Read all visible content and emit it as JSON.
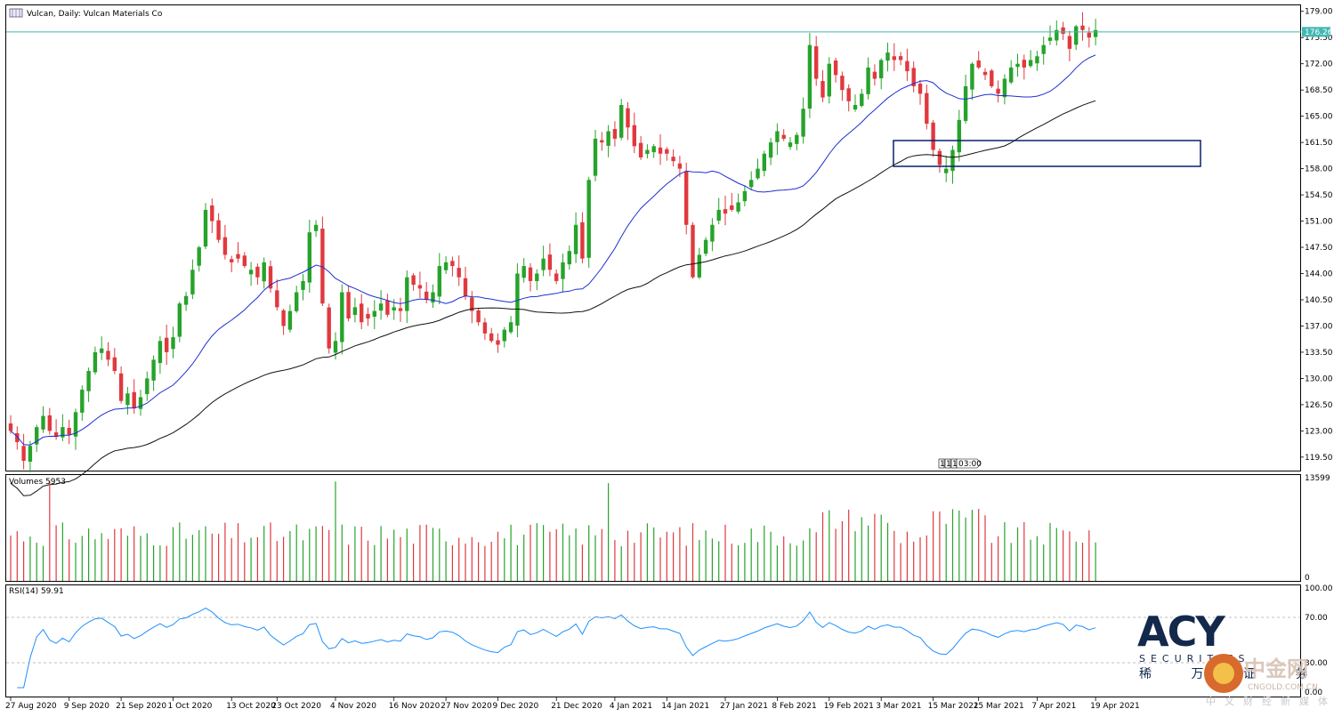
{
  "chart_data": {
    "type": "candlestick",
    "title": "Vulcan, Daily:  Vulcan Materials Co",
    "price_axis_ticks": [
      "179.00",
      "175.50",
      "172.00",
      "168.50",
      "165.00",
      "161.50",
      "158.00",
      "154.50",
      "151.00",
      "147.50",
      "144.00",
      "140.50",
      "137.00",
      "133.50",
      "130.00",
      "126.50",
      "123.00",
      "119.50"
    ],
    "ylim": [
      117.7,
      179.8
    ],
    "current_price": "176.26",
    "date_labels": [
      "27 Aug 2020",
      "9 Sep 2020",
      "21 Sep 2020",
      "1 Oct 2020",
      "13 Oct 2020",
      "23 Oct 2020",
      "4 Nov 2020",
      "16 Nov 2020",
      "27 Nov 2020",
      "9 Dec 2020",
      "21 Dec 2020",
      "4 Jan 2021",
      "14 Jan 2021",
      "27 Jan 2021",
      "8 Feb 2021",
      "19 Feb 2021",
      "3 Mar 2021",
      "15 Mar 2021",
      "25 Mar 2021",
      "7 Apr 2021",
      "19 Apr 2021"
    ],
    "date_label_index": [
      0,
      9,
      17,
      25,
      34,
      41,
      50,
      59,
      67,
      75,
      84,
      93,
      101,
      110,
      118,
      126,
      134,
      142,
      149,
      158,
      167
    ],
    "marker_text": "03:00",
    "marker_boxes": [
      "1",
      "1",
      "1"
    ],
    "close": [
      123.0,
      121.5,
      119.0,
      121.0,
      123.5,
      125.0,
      123.0,
      122.2,
      123.5,
      122.5,
      125.5,
      128.5,
      131.0,
      133.5,
      134.0,
      132.5,
      131.0,
      127.0,
      128.0,
      126.0,
      127.5,
      130.0,
      132.5,
      135.0,
      133.5,
      135.5,
      140.0,
      141.0,
      144.5,
      147.5,
      152.5,
      151.0,
      148.5,
      146.5,
      145.5,
      146.0,
      145.0,
      144.5,
      143.5,
      145.5,
      142.0,
      139.5,
      137.0,
      139.0,
      141.5,
      143.0,
      149.5,
      150.5,
      140.0,
      134.0,
      135.0,
      141.5,
      138.0,
      139.5,
      137.5,
      138.0,
      139.0,
      140.0,
      138.5,
      139.5,
      139.0,
      143.5,
      142.5,
      142.0,
      140.5,
      141.5,
      145.0,
      145.5,
      145.0,
      143.5,
      141.0,
      139.0,
      137.5,
      136.0,
      135.0,
      134.5,
      136.5,
      137.5,
      144.0,
      145.0,
      143.0,
      144.0,
      146.0,
      144.5,
      143.0,
      145.5,
      147.0,
      150.5,
      146.0,
      156.5,
      162.0,
      161.5,
      163.0,
      162.0,
      166.5,
      163.5,
      161.0,
      159.5,
      160.5,
      161.0,
      160.0,
      160.0,
      159.0,
      158.0,
      150.5,
      143.5,
      146.5,
      148.5,
      150.5,
      152.5,
      152.0,
      152.5,
      153.5,
      155.0,
      156.5,
      158.0,
      160.0,
      161.5,
      163.0,
      162.0,
      161.5,
      162.5,
      166.0,
      174.5,
      170.0,
      167.5,
      172.0,
      170.5,
      168.5,
      167.0,
      166.5,
      168.0,
      171.5,
      170.0,
      172.5,
      173.5,
      172.5,
      172.5,
      171.0,
      169.0,
      168.0,
      164.0,
      160.5,
      158.5,
      158.0,
      160.5,
      164.5,
      169.0,
      172.0,
      171.5,
      170.5,
      169.0,
      168.0,
      170.0,
      171.5,
      172.0,
      171.5,
      172.5,
      173.0,
      174.5,
      175.5,
      176.5,
      176.0,
      174.0,
      177.0,
      176.5,
      175.5,
      176.5
    ]
  },
  "panels": {
    "volume": {
      "label": "Volumes 5953",
      "max_tick": "13599",
      "min_tick": "0",
      "vmax": 13599
    },
    "rsi": {
      "label": "RSI(14) 59.91",
      "ticks": [
        "100.00",
        "70.00",
        "30.00",
        "0.00"
      ]
    }
  },
  "colors": {
    "up": "#26a32a",
    "down": "#e0393e",
    "ma_short": "#1f2fd0",
    "ma_long": "#111111",
    "rsi": "#1e90ff",
    "price_line": "#43b8b1",
    "box": "#0b1e6a"
  },
  "logo": {
    "brand": "ACY",
    "sub": "SECURITIES",
    "cn": "稀 万 证 券"
  },
  "watermark": {
    "big": "中金网",
    "small": "CNGOLD.COM.CN",
    "cn": "中文财经新媒体"
  }
}
